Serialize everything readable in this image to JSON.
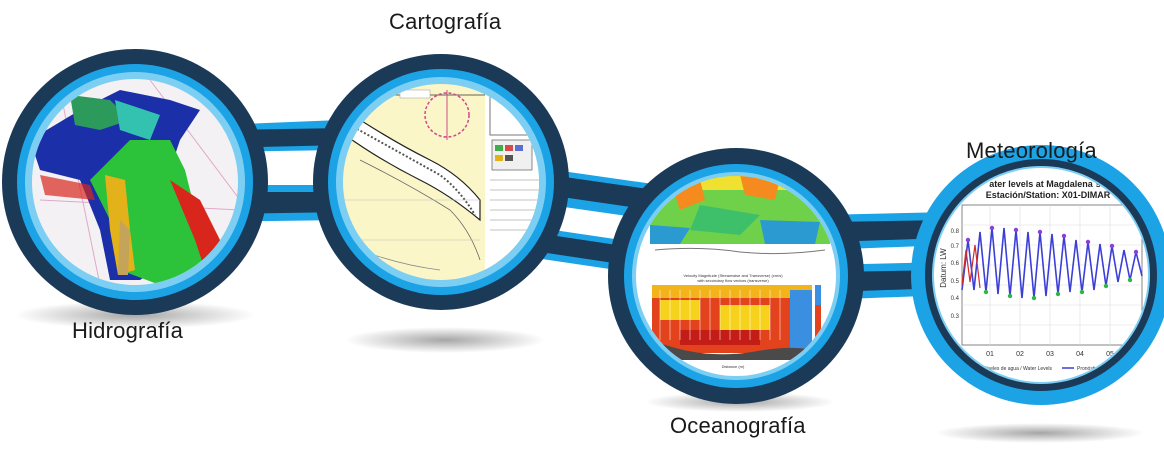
{
  "labels": {
    "hidrografia": "Hidrografía",
    "cartografia": "Cartografía",
    "oceanografia": "Oceanografía",
    "meteorologia": "Meteorología"
  },
  "meteo_chart": {
    "title_line1": "ater levels at Magdalena´s r",
    "title_line2": "Estación/Station: X01-DIMAR",
    "ylabel": "Datum: LW",
    "yticks": [
      "0.8",
      "0.7",
      "0.6",
      "0.5",
      "0.4",
      "0.3"
    ],
    "xticks": [
      "01",
      "02",
      "03",
      "04",
      "05",
      "06"
    ],
    "legend_1": "Niveles de agua / Water Levels",
    "legend_2": "Pronóstico"
  },
  "ocean_chart": {
    "title_line1": "Velocity Magnitude (Streamwise and Transverse) (cm/s)",
    "title_line2": "with secondary flow vectors (transverse)",
    "xlabel": "Distance (m)",
    "xticks": [
      "100",
      "200",
      "300",
      "400",
      "500",
      "600"
    ]
  },
  "colors": {
    "ring_dark": "#1b3a57",
    "ring_light": "#1ba3e6",
    "ring_pale": "#7ccff3"
  }
}
